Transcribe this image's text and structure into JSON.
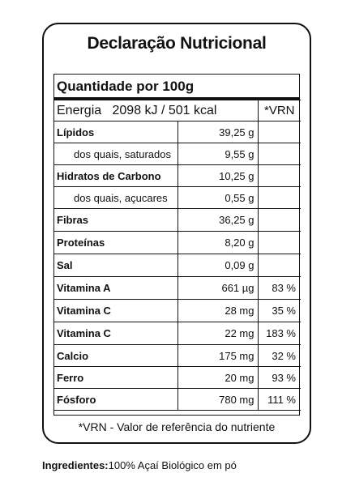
{
  "title": "Declaração Nutricional",
  "quantity_header": "Quantidade por 100g",
  "energy": {
    "label": "Energia",
    "value": "2098 kJ / 501 kcal",
    "vrn_header": "*VRN"
  },
  "rows": [
    {
      "name": "Lípidos",
      "value": "39,25 g",
      "vrn": "",
      "bold": true,
      "sub": false
    },
    {
      "name": "dos quais, saturados",
      "value": "9,55 g",
      "vrn": "",
      "bold": false,
      "sub": true
    },
    {
      "name": "Hidratos de Carbono",
      "value": "10,25 g",
      "vrn": "",
      "bold": true,
      "sub": false
    },
    {
      "name": "dos quais, açucares",
      "value": "0,55 g",
      "vrn": "",
      "bold": false,
      "sub": true
    },
    {
      "name": "Fibras",
      "value": "36,25 g",
      "vrn": "",
      "bold": true,
      "sub": false
    },
    {
      "name": "Proteínas",
      "value": "8,20 g",
      "vrn": "",
      "bold": true,
      "sub": false
    },
    {
      "name": "Sal",
      "value": "0,09 g",
      "vrn": "",
      "bold": true,
      "sub": false
    },
    {
      "name": "Vitamina A",
      "value": "661 µg",
      "vrn": "83 %",
      "bold": true,
      "sub": false
    },
    {
      "name": "Vitamina C",
      "value": "28 mg",
      "vrn": "35 %",
      "bold": true,
      "sub": false
    },
    {
      "name": "Vitamina C",
      "value": "22 mg",
      "vrn": "183 %",
      "bold": true,
      "sub": false
    },
    {
      "name": "Calcio",
      "value": "175 mg",
      "vrn": "32 %",
      "bold": true,
      "sub": false
    },
    {
      "name": "Ferro",
      "value": "20 mg",
      "vrn": "93 %",
      "bold": true,
      "sub": false
    },
    {
      "name": "Fósforo",
      "value": "780 mg",
      "vrn": "111 %",
      "bold": true,
      "sub": false
    }
  ],
  "footnote": "*VRN - Valor de referência do nutriente",
  "ingredients": {
    "label": "Ingredientes:",
    "text": "100% Açaí  Biológico em pó"
  }
}
